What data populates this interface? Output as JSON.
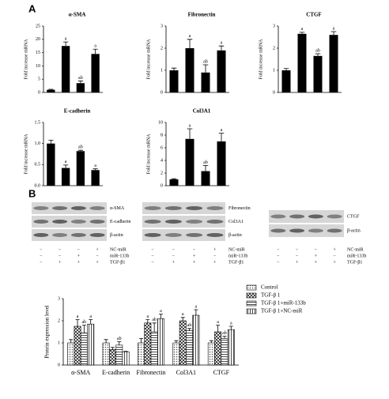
{
  "panel_labels": [
    "A",
    "B"
  ],
  "chart_data": [
    {
      "type": "bar",
      "title": "α-SMA",
      "ylabel": "Fold increase mRNA",
      "color": "#000000",
      "values": [
        1,
        17.5,
        3.5,
        14.5
      ],
      "errors": [
        0.2,
        1.5,
        0.8,
        1.8
      ],
      "letters": [
        null,
        "a",
        "ab",
        "a"
      ],
      "ylim": [
        0,
        25
      ],
      "yticks": [
        0,
        5,
        10,
        15,
        20,
        25
      ]
    },
    {
      "type": "bar",
      "title": "Fibronectin",
      "ylabel": "Fold increase mRNA",
      "color": "#000000",
      "values": [
        1.0,
        2.0,
        0.9,
        1.9
      ],
      "errors": [
        0.1,
        0.4,
        0.35,
        0.2
      ],
      "letters": [
        null,
        "a",
        "ab",
        "a"
      ],
      "ylim": [
        0,
        3
      ],
      "yticks": [
        0,
        1,
        2,
        3
      ]
    },
    {
      "type": "bar",
      "title": "CTGF",
      "ylabel": "Fold increase mRNA",
      "color": "#000000",
      "values": [
        1.0,
        2.65,
        1.65,
        2.6
      ],
      "errors": [
        0.08,
        0.07,
        0.1,
        0.15
      ],
      "letters": [
        null,
        "a",
        "ab",
        "a"
      ],
      "ylim": [
        0,
        3
      ],
      "yticks": [
        0,
        1,
        2,
        3
      ]
    },
    {
      "type": "bar",
      "title": "E-cadherin",
      "ylabel": "Fold increase mRNA",
      "color": "#000000",
      "values": [
        1.0,
        0.42,
        0.82,
        0.37
      ],
      "errors": [
        0.08,
        0.07,
        0.02,
        0.03
      ],
      "letters": [
        null,
        "a",
        "ab",
        "a"
      ],
      "ylim": [
        0,
        1.5
      ],
      "yticks": [
        {
          "value": 0,
          "label": "0.0"
        },
        {
          "value": 0.5,
          "label": "0.5"
        },
        {
          "value": 1,
          "label": "1.0"
        },
        {
          "value": 1.5,
          "label": "1.5"
        }
      ]
    },
    {
      "type": "bar",
      "title": "Col3A1",
      "ylabel": "Fold increase mRNA",
      "color": "#000000",
      "values": [
        1.0,
        7.4,
        2.3,
        7.0
      ],
      "errors": [
        0.1,
        1.6,
        0.9,
        1.3
      ],
      "letters": [
        null,
        "a",
        "ab",
        "a"
      ],
      "ylim": [
        0,
        10
      ],
      "yticks": [
        0,
        2,
        4,
        6,
        8,
        10
      ]
    },
    {
      "type": "grouped_bar",
      "ylabel": "Protein expression level",
      "categories": [
        "α-SMA",
        "E-cadherin",
        "Fibronectin",
        "Col3A1",
        "CTGF"
      ],
      "series": [
        {
          "name": "Control",
          "color": "#ffffff",
          "hatch": "dots",
          "values": [
            1.0,
            1.0,
            1.0,
            1.0,
            1.0
          ],
          "errors": [
            0.15,
            0.15,
            0.2,
            0.1,
            0.1
          ],
          "letters": [
            null,
            null,
            null,
            null,
            null
          ]
        },
        {
          "name": "TGF-β 1",
          "color": "#ffffff",
          "hatch": "cross",
          "values": [
            1.75,
            0.7,
            1.9,
            2.0,
            1.5
          ],
          "errors": [
            0.3,
            0.1,
            0.15,
            0.15,
            0.3
          ],
          "letters": [
            "a",
            null,
            "a",
            "a",
            "a"
          ]
        },
        {
          "name": "TGF-β 1+miR-133b",
          "color": "#ffffff",
          "hatch": "hlines",
          "values": [
            1.45,
            0.9,
            1.5,
            1.55,
            1.2
          ],
          "errors": [
            0.35,
            0.15,
            0.4,
            0.1,
            0.1
          ],
          "letters": [
            "ab",
            "ab",
            "ab",
            "ab",
            "ab"
          ]
        },
        {
          "name": "TGF-β 1+NC-miR",
          "color": "#ffffff",
          "hatch": "vlines",
          "values": [
            1.85,
            0.6,
            2.1,
            2.25,
            1.6
          ],
          "errors": [
            0.2,
            0.02,
            0.2,
            0.25,
            0.15
          ],
          "letters": [
            "a",
            null,
            "a",
            "a",
            "a"
          ]
        }
      ],
      "ylim": [
        0,
        3
      ],
      "yticks": [
        0,
        1,
        2,
        3
      ]
    }
  ],
  "blots": [
    {
      "rows": [
        "α-SMA",
        "E-cadherin",
        "β-actin"
      ]
    },
    {
      "rows": [
        "Fibronectin",
        "Col3A1",
        "β-actin"
      ]
    },
    {
      "rows": [
        "CTGF",
        "β-actin"
      ]
    }
  ],
  "treatments": [
    {
      "label": "NC-miR",
      "signs": [
        "−",
        "−",
        "−",
        "+"
      ]
    },
    {
      "label": "miR-133b",
      "signs": [
        "−",
        "−",
        "+",
        "−"
      ]
    },
    {
      "label": "TGF-β1",
      "signs": [
        "−",
        "+",
        "+",
        "+"
      ]
    }
  ]
}
